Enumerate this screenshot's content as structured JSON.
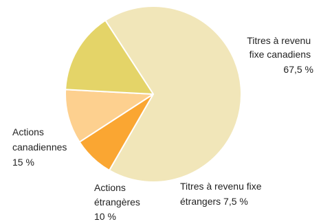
{
  "chart_data": {
    "type": "pie",
    "slices": [
      {
        "label_lines": [
          "Titres à revenu",
          "fixe canadiens"
        ],
        "value": 67.5,
        "value_label": "67,5 %",
        "color": "#f1e6b9"
      },
      {
        "label_lines": [
          "Titres à revenu fixe",
          "étrangers 7,5 %"
        ],
        "value": 7.5,
        "value_label": "",
        "color": "#faa632"
      },
      {
        "label_lines": [
          "Actions",
          "étrangères"
        ],
        "value": 10,
        "value_label": "10 %",
        "color": "#fdd08f"
      },
      {
        "label_lines": [
          "Actions",
          "canadiennes"
        ],
        "value": 15,
        "value_label": "15 %",
        "color": "#e4d468"
      }
    ]
  }
}
